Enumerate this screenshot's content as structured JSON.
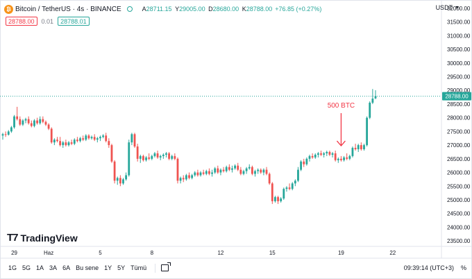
{
  "legend": {
    "title": "Bitcoin / TetherUS · 4s · BINANCE",
    "open_label": "A",
    "open_value": "28711.15",
    "high_label": "Y",
    "high_value": "29005.00",
    "low_label": "D",
    "low_value": "28680.00",
    "close_label": "K",
    "close_value": "28788.00",
    "change": "+76.85 (+0.27%)",
    "sell_price": "28788.00",
    "spread": "0.01",
    "buy_price": "28788.01"
  },
  "currency": "USDT",
  "logo_text": "TradingView",
  "annotation": {
    "text": "500 BTC",
    "color": "#f23645"
  },
  "toolbar": {
    "timeframes": [
      "1G",
      "5G",
      "1A",
      "3A",
      "6A",
      "Bu sene",
      "1Y",
      "5Y",
      "Tümü"
    ],
    "time": "09:39:14 (UTC+3)",
    "percent": "%"
  },
  "colors": {
    "up": "#26a69a",
    "down": "#ef5350",
    "price_line": "#26a69a"
  },
  "chart_data": {
    "type": "candlestick",
    "y_axis_labels": [
      23500,
      24000,
      24500,
      25000,
      25500,
      26000,
      26500,
      27000,
      27500,
      28000,
      28500,
      29000,
      29500,
      30000,
      30500,
      31000,
      31500,
      32000
    ],
    "ylim": [
      23300,
      32100
    ],
    "x_axis_labels": [
      {
        "label": "29",
        "index": 4
      },
      {
        "label": "Haz",
        "index": 16
      },
      {
        "label": "5",
        "index": 34
      },
      {
        "label": "8",
        "index": 52
      },
      {
        "label": "12",
        "index": 76
      },
      {
        "label": "15",
        "index": 94
      },
      {
        "label": "19",
        "index": 118
      },
      {
        "label": "22",
        "index": 136
      }
    ],
    "last_price": 28788.0,
    "last_price_label": "28788.00",
    "annotation_index": 118,
    "annotation_value": 26850,
    "candles": [
      {
        "o": 27350,
        "h": 27450,
        "l": 27200,
        "c": 27400
      },
      {
        "o": 27400,
        "h": 27500,
        "l": 27300,
        "c": 27380
      },
      {
        "o": 27380,
        "h": 27550,
        "l": 27350,
        "c": 27500
      },
      {
        "o": 27500,
        "h": 27700,
        "l": 27450,
        "c": 27650
      },
      {
        "o": 27650,
        "h": 28100,
        "l": 27600,
        "c": 28050
      },
      {
        "o": 28050,
        "h": 28400,
        "l": 27900,
        "c": 27950
      },
      {
        "o": 27950,
        "h": 28050,
        "l": 27700,
        "c": 27750
      },
      {
        "o": 27750,
        "h": 27950,
        "l": 27700,
        "c": 27900
      },
      {
        "o": 27900,
        "h": 28000,
        "l": 27800,
        "c": 27950
      },
      {
        "o": 27950,
        "h": 28050,
        "l": 27750,
        "c": 27800
      },
      {
        "o": 27800,
        "h": 27900,
        "l": 27650,
        "c": 27700
      },
      {
        "o": 27700,
        "h": 27950,
        "l": 27650,
        "c": 27900
      },
      {
        "o": 27900,
        "h": 28000,
        "l": 27750,
        "c": 27800
      },
      {
        "o": 27800,
        "h": 28050,
        "l": 27750,
        "c": 27950
      },
      {
        "o": 27950,
        "h": 28050,
        "l": 27800,
        "c": 27850
      },
      {
        "o": 27850,
        "h": 27900,
        "l": 27700,
        "c": 27750
      },
      {
        "o": 27750,
        "h": 27800,
        "l": 27550,
        "c": 27600
      },
      {
        "o": 27600,
        "h": 27650,
        "l": 27050,
        "c": 27100
      },
      {
        "o": 27100,
        "h": 27250,
        "l": 27000,
        "c": 27200
      },
      {
        "o": 27200,
        "h": 27300,
        "l": 27100,
        "c": 27150
      },
      {
        "o": 27150,
        "h": 27300,
        "l": 26950,
        "c": 27000
      },
      {
        "o": 27000,
        "h": 27150,
        "l": 26900,
        "c": 27100
      },
      {
        "o": 27100,
        "h": 27200,
        "l": 26950,
        "c": 27000
      },
      {
        "o": 27000,
        "h": 27150,
        "l": 26950,
        "c": 27100
      },
      {
        "o": 27100,
        "h": 27200,
        "l": 27000,
        "c": 27050
      },
      {
        "o": 27050,
        "h": 27250,
        "l": 27000,
        "c": 27200
      },
      {
        "o": 27200,
        "h": 27300,
        "l": 27100,
        "c": 27150
      },
      {
        "o": 27150,
        "h": 27300,
        "l": 27100,
        "c": 27250
      },
      {
        "o": 27250,
        "h": 27350,
        "l": 27150,
        "c": 27200
      },
      {
        "o": 27200,
        "h": 27400,
        "l": 27150,
        "c": 27350
      },
      {
        "o": 27350,
        "h": 27400,
        "l": 27200,
        "c": 27250
      },
      {
        "o": 27250,
        "h": 27350,
        "l": 27200,
        "c": 27300
      },
      {
        "o": 27300,
        "h": 27400,
        "l": 27150,
        "c": 27200
      },
      {
        "o": 27200,
        "h": 27300,
        "l": 27100,
        "c": 27250
      },
      {
        "o": 27250,
        "h": 27350,
        "l": 27150,
        "c": 27300
      },
      {
        "o": 27300,
        "h": 27400,
        "l": 27250,
        "c": 27350
      },
      {
        "o": 27350,
        "h": 27450,
        "l": 27100,
        "c": 27150
      },
      {
        "o": 27150,
        "h": 27250,
        "l": 26900,
        "c": 27000
      },
      {
        "o": 27000,
        "h": 27050,
        "l": 26350,
        "c": 26400
      },
      {
        "o": 26400,
        "h": 26450,
        "l": 25600,
        "c": 25700
      },
      {
        "o": 25700,
        "h": 25850,
        "l": 25550,
        "c": 25800
      },
      {
        "o": 25800,
        "h": 25900,
        "l": 25500,
        "c": 25600
      },
      {
        "o": 25600,
        "h": 25800,
        "l": 25550,
        "c": 25750
      },
      {
        "o": 25750,
        "h": 26000,
        "l": 25700,
        "c": 25900
      },
      {
        "o": 25900,
        "h": 27200,
        "l": 25850,
        "c": 27100
      },
      {
        "o": 27100,
        "h": 27450,
        "l": 27000,
        "c": 27400
      },
      {
        "o": 27400,
        "h": 27450,
        "l": 26900,
        "c": 26950
      },
      {
        "o": 26950,
        "h": 27050,
        "l": 26400,
        "c": 26500
      },
      {
        "o": 26500,
        "h": 26650,
        "l": 26350,
        "c": 26600
      },
      {
        "o": 26600,
        "h": 26650,
        "l": 26400,
        "c": 26450
      },
      {
        "o": 26450,
        "h": 26600,
        "l": 26400,
        "c": 26550
      },
      {
        "o": 26550,
        "h": 26700,
        "l": 26450,
        "c": 26500
      },
      {
        "o": 26500,
        "h": 26650,
        "l": 26450,
        "c": 26600
      },
      {
        "o": 26600,
        "h": 26750,
        "l": 26550,
        "c": 26700
      },
      {
        "o": 26700,
        "h": 26800,
        "l": 26500,
        "c": 26550
      },
      {
        "o": 26550,
        "h": 26650,
        "l": 26450,
        "c": 26600
      },
      {
        "o": 26600,
        "h": 26700,
        "l": 26500,
        "c": 26650
      },
      {
        "o": 26650,
        "h": 26750,
        "l": 26550,
        "c": 26700
      },
      {
        "o": 26700,
        "h": 26750,
        "l": 26450,
        "c": 26500
      },
      {
        "o": 26500,
        "h": 26650,
        "l": 26450,
        "c": 26600
      },
      {
        "o": 26600,
        "h": 26700,
        "l": 26450,
        "c": 26500
      },
      {
        "o": 26500,
        "h": 26550,
        "l": 25600,
        "c": 25700
      },
      {
        "o": 25700,
        "h": 25850,
        "l": 25600,
        "c": 25800
      },
      {
        "o": 25800,
        "h": 25900,
        "l": 25650,
        "c": 25750
      },
      {
        "o": 25750,
        "h": 25950,
        "l": 25700,
        "c": 25900
      },
      {
        "o": 25900,
        "h": 26000,
        "l": 25750,
        "c": 25800
      },
      {
        "o": 25800,
        "h": 25950,
        "l": 25750,
        "c": 25900
      },
      {
        "o": 25900,
        "h": 26050,
        "l": 25850,
        "c": 26000
      },
      {
        "o": 26000,
        "h": 26100,
        "l": 25850,
        "c": 25900
      },
      {
        "o": 25900,
        "h": 26050,
        "l": 25850,
        "c": 26000
      },
      {
        "o": 26000,
        "h": 26100,
        "l": 25900,
        "c": 25950
      },
      {
        "o": 25950,
        "h": 26100,
        "l": 25900,
        "c": 26050
      },
      {
        "o": 26050,
        "h": 26150,
        "l": 25900,
        "c": 25950
      },
      {
        "o": 25950,
        "h": 26100,
        "l": 25850,
        "c": 26000
      },
      {
        "o": 26000,
        "h": 26200,
        "l": 25950,
        "c": 26150
      },
      {
        "o": 26150,
        "h": 26250,
        "l": 25950,
        "c": 26000
      },
      {
        "o": 26000,
        "h": 26150,
        "l": 25900,
        "c": 26100
      },
      {
        "o": 26100,
        "h": 26200,
        "l": 26000,
        "c": 26050
      },
      {
        "o": 26050,
        "h": 26250,
        "l": 26000,
        "c": 26200
      },
      {
        "o": 26200,
        "h": 26300,
        "l": 26050,
        "c": 26100
      },
      {
        "o": 26100,
        "h": 26250,
        "l": 26000,
        "c": 26150
      },
      {
        "o": 26150,
        "h": 26300,
        "l": 26100,
        "c": 26250
      },
      {
        "o": 26250,
        "h": 26350,
        "l": 26050,
        "c": 26100
      },
      {
        "o": 26100,
        "h": 26200,
        "l": 25900,
        "c": 25950
      },
      {
        "o": 25950,
        "h": 26100,
        "l": 25900,
        "c": 26050
      },
      {
        "o": 26050,
        "h": 26200,
        "l": 25950,
        "c": 26150
      },
      {
        "o": 26150,
        "h": 26300,
        "l": 26100,
        "c": 26200
      },
      {
        "o": 26200,
        "h": 26250,
        "l": 25900,
        "c": 25950
      },
      {
        "o": 25950,
        "h": 26100,
        "l": 25850,
        "c": 26050
      },
      {
        "o": 26050,
        "h": 26150,
        "l": 25950,
        "c": 26100
      },
      {
        "o": 26100,
        "h": 26150,
        "l": 25950,
        "c": 26000
      },
      {
        "o": 26000,
        "h": 26150,
        "l": 25900,
        "c": 26100
      },
      {
        "o": 26100,
        "h": 26200,
        "l": 25900,
        "c": 25950
      },
      {
        "o": 25950,
        "h": 26000,
        "l": 25550,
        "c": 25600
      },
      {
        "o": 25600,
        "h": 25650,
        "l": 24850,
        "c": 24950
      },
      {
        "o": 24950,
        "h": 25150,
        "l": 24900,
        "c": 25100
      },
      {
        "o": 25100,
        "h": 25150,
        "l": 24850,
        "c": 24950
      },
      {
        "o": 24950,
        "h": 25100,
        "l": 24900,
        "c": 25050
      },
      {
        "o": 25050,
        "h": 25450,
        "l": 25000,
        "c": 25400
      },
      {
        "o": 25400,
        "h": 25500,
        "l": 25300,
        "c": 25450
      },
      {
        "o": 25450,
        "h": 25600,
        "l": 25350,
        "c": 25400
      },
      {
        "o": 25400,
        "h": 25650,
        "l": 25350,
        "c": 25600
      },
      {
        "o": 25600,
        "h": 25750,
        "l": 25500,
        "c": 25700
      },
      {
        "o": 25700,
        "h": 26200,
        "l": 25650,
        "c": 26100
      },
      {
        "o": 26100,
        "h": 26450,
        "l": 26050,
        "c": 26400
      },
      {
        "o": 26400,
        "h": 26500,
        "l": 26200,
        "c": 26300
      },
      {
        "o": 26300,
        "h": 26550,
        "l": 26250,
        "c": 26500
      },
      {
        "o": 26500,
        "h": 26650,
        "l": 26400,
        "c": 26600
      },
      {
        "o": 26600,
        "h": 26700,
        "l": 26500,
        "c": 26550
      },
      {
        "o": 26550,
        "h": 26700,
        "l": 26500,
        "c": 26650
      },
      {
        "o": 26650,
        "h": 26750,
        "l": 26550,
        "c": 26700
      },
      {
        "o": 26700,
        "h": 26800,
        "l": 26600,
        "c": 26650
      },
      {
        "o": 26650,
        "h": 26750,
        "l": 26550,
        "c": 26700
      },
      {
        "o": 26700,
        "h": 26800,
        "l": 26600,
        "c": 26750
      },
      {
        "o": 26750,
        "h": 26800,
        "l": 26600,
        "c": 26650
      },
      {
        "o": 26650,
        "h": 26750,
        "l": 26550,
        "c": 26700
      },
      {
        "o": 26700,
        "h": 26800,
        "l": 26400,
        "c": 26450
      },
      {
        "o": 26450,
        "h": 26550,
        "l": 26350,
        "c": 26500
      },
      {
        "o": 26500,
        "h": 26600,
        "l": 26400,
        "c": 26450
      },
      {
        "o": 26450,
        "h": 26600,
        "l": 26400,
        "c": 26550
      },
      {
        "o": 26550,
        "h": 26700,
        "l": 26450,
        "c": 26500
      },
      {
        "o": 26500,
        "h": 26650,
        "l": 26450,
        "c": 26600
      },
      {
        "o": 26600,
        "h": 26950,
        "l": 26550,
        "c": 26900
      },
      {
        "o": 26900,
        "h": 27050,
        "l": 26800,
        "c": 26850
      },
      {
        "o": 26850,
        "h": 27050,
        "l": 26750,
        "c": 27000
      },
      {
        "o": 27000,
        "h": 27100,
        "l": 26800,
        "c": 26850
      },
      {
        "o": 26850,
        "h": 27050,
        "l": 26800,
        "c": 27000
      },
      {
        "o": 27000,
        "h": 28050,
        "l": 26950,
        "c": 28000
      },
      {
        "o": 28000,
        "h": 28600,
        "l": 27950,
        "c": 28550
      },
      {
        "o": 28550,
        "h": 29050,
        "l": 28500,
        "c": 28700
      },
      {
        "o": 28711,
        "h": 29005,
        "l": 28680,
        "c": 28788
      }
    ]
  }
}
